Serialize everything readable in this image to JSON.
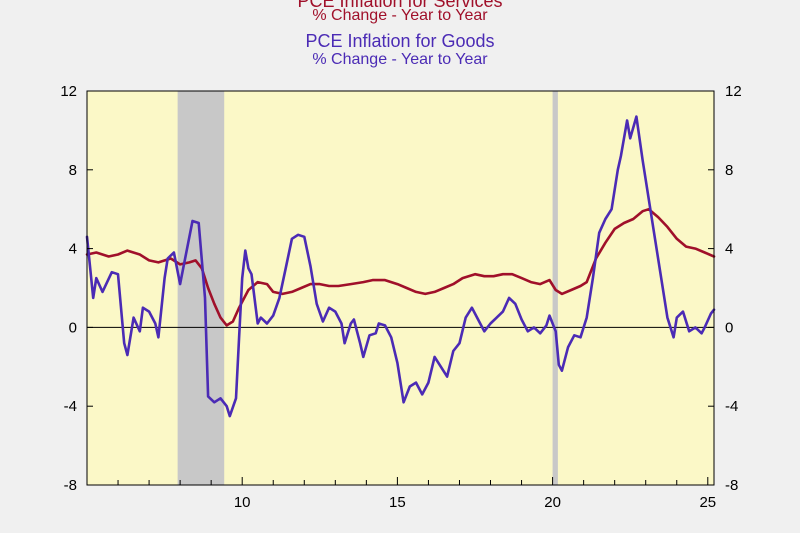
{
  "chart_data": {
    "type": "line",
    "title": "PCE Inflation for Services",
    "subtitle": "% Change - Year to Year",
    "title2": "PCE Inflation for Goods",
    "subtitle2": "% Change - Year to Year",
    "xlabel": "",
    "ylabel": "",
    "ylim": [
      -8,
      12
    ],
    "xlim": [
      2005,
      2025.2
    ],
    "yticks": [
      -8,
      -4,
      0,
      4,
      8,
      12
    ],
    "ytick_labels": [
      "-8",
      "-4",
      "0",
      "4",
      "8",
      "12"
    ],
    "xtick_labels": [
      {
        "x": 2010,
        "label": "10"
      },
      {
        "x": 2015,
        "label": "15"
      },
      {
        "x": 2020,
        "label": "20"
      },
      {
        "x": 2025,
        "label": "25"
      }
    ],
    "recessions": [
      [
        2007.92,
        2009.42
      ],
      [
        2020.0,
        2020.17
      ]
    ],
    "colors": {
      "services": "#a0102a",
      "goods": "#4b2bb5",
      "recession": "#c8c8c8",
      "plot_bg": "#fbf8c7",
      "page_bg": "#f0f0f0"
    },
    "series": [
      {
        "name": "PCE Inflation for Services",
        "color": "#a0102a",
        "points": [
          [
            2005.0,
            3.7
          ],
          [
            2005.3,
            3.8
          ],
          [
            2005.7,
            3.6
          ],
          [
            2006.0,
            3.7
          ],
          [
            2006.3,
            3.9
          ],
          [
            2006.7,
            3.7
          ],
          [
            2007.0,
            3.4
          ],
          [
            2007.3,
            3.3
          ],
          [
            2007.7,
            3.5
          ],
          [
            2008.0,
            3.2
          ],
          [
            2008.3,
            3.3
          ],
          [
            2008.5,
            3.4
          ],
          [
            2008.7,
            3.0
          ],
          [
            2008.9,
            2.0
          ],
          [
            2009.1,
            1.2
          ],
          [
            2009.3,
            0.5
          ],
          [
            2009.5,
            0.1
          ],
          [
            2009.7,
            0.3
          ],
          [
            2009.9,
            1.0
          ],
          [
            2010.2,
            1.9
          ],
          [
            2010.5,
            2.3
          ],
          [
            2010.8,
            2.2
          ],
          [
            2011.0,
            1.8
          ],
          [
            2011.3,
            1.7
          ],
          [
            2011.6,
            1.8
          ],
          [
            2011.9,
            2.0
          ],
          [
            2012.2,
            2.2
          ],
          [
            2012.5,
            2.2
          ],
          [
            2012.8,
            2.1
          ],
          [
            2013.1,
            2.1
          ],
          [
            2013.5,
            2.2
          ],
          [
            2013.9,
            2.3
          ],
          [
            2014.2,
            2.4
          ],
          [
            2014.6,
            2.4
          ],
          [
            2015.0,
            2.2
          ],
          [
            2015.3,
            2.0
          ],
          [
            2015.6,
            1.8
          ],
          [
            2015.9,
            1.7
          ],
          [
            2016.2,
            1.8
          ],
          [
            2016.5,
            2.0
          ],
          [
            2016.8,
            2.2
          ],
          [
            2017.1,
            2.5
          ],
          [
            2017.5,
            2.7
          ],
          [
            2017.8,
            2.6
          ],
          [
            2018.1,
            2.6
          ],
          [
            2018.4,
            2.7
          ],
          [
            2018.7,
            2.7
          ],
          [
            2019.0,
            2.5
          ],
          [
            2019.3,
            2.3
          ],
          [
            2019.6,
            2.2
          ],
          [
            2019.9,
            2.4
          ],
          [
            2020.1,
            1.9
          ],
          [
            2020.3,
            1.7
          ],
          [
            2020.6,
            1.9
          ],
          [
            2020.9,
            2.1
          ],
          [
            2021.1,
            2.3
          ],
          [
            2021.4,
            3.5
          ],
          [
            2021.7,
            4.3
          ],
          [
            2022.0,
            5.0
          ],
          [
            2022.3,
            5.3
          ],
          [
            2022.6,
            5.5
          ],
          [
            2022.9,
            5.9
          ],
          [
            2023.1,
            6.0
          ],
          [
            2023.4,
            5.6
          ],
          [
            2023.7,
            5.1
          ],
          [
            2024.0,
            4.5
          ],
          [
            2024.3,
            4.1
          ],
          [
            2024.6,
            4.0
          ],
          [
            2024.9,
            3.8
          ],
          [
            2025.2,
            3.6
          ]
        ]
      },
      {
        "name": "PCE Inflation for Goods",
        "color": "#4b2bb5",
        "points": [
          [
            2005.0,
            4.6
          ],
          [
            2005.2,
            1.5
          ],
          [
            2005.3,
            2.5
          ],
          [
            2005.5,
            1.8
          ],
          [
            2005.8,
            2.8
          ],
          [
            2006.0,
            2.7
          ],
          [
            2006.2,
            -0.8
          ],
          [
            2006.3,
            -1.4
          ],
          [
            2006.5,
            0.5
          ],
          [
            2006.7,
            -0.2
          ],
          [
            2006.8,
            1.0
          ],
          [
            2007.0,
            0.8
          ],
          [
            2007.2,
            0.2
          ],
          [
            2007.3,
            -0.5
          ],
          [
            2007.5,
            2.5
          ],
          [
            2007.6,
            3.5
          ],
          [
            2007.8,
            3.8
          ],
          [
            2008.0,
            2.2
          ],
          [
            2008.2,
            3.8
          ],
          [
            2008.4,
            5.4
          ],
          [
            2008.6,
            5.3
          ],
          [
            2008.8,
            1.5
          ],
          [
            2008.9,
            -3.5
          ],
          [
            2009.1,
            -3.8
          ],
          [
            2009.3,
            -3.6
          ],
          [
            2009.5,
            -4.0
          ],
          [
            2009.6,
            -4.5
          ],
          [
            2009.8,
            -3.6
          ],
          [
            2009.9,
            -0.5
          ],
          [
            2010.0,
            2.5
          ],
          [
            2010.1,
            3.9
          ],
          [
            2010.2,
            3.0
          ],
          [
            2010.3,
            2.7
          ],
          [
            2010.5,
            0.2
          ],
          [
            2010.6,
            0.5
          ],
          [
            2010.8,
            0.2
          ],
          [
            2011.0,
            0.6
          ],
          [
            2011.2,
            1.5
          ],
          [
            2011.4,
            3.0
          ],
          [
            2011.6,
            4.5
          ],
          [
            2011.8,
            4.7
          ],
          [
            2012.0,
            4.6
          ],
          [
            2012.2,
            3.1
          ],
          [
            2012.4,
            1.2
          ],
          [
            2012.6,
            0.3
          ],
          [
            2012.8,
            1.0
          ],
          [
            2013.0,
            0.8
          ],
          [
            2013.2,
            0.2
          ],
          [
            2013.3,
            -0.8
          ],
          [
            2013.5,
            0.2
          ],
          [
            2013.6,
            0.4
          ],
          [
            2013.8,
            -0.8
          ],
          [
            2013.9,
            -1.5
          ],
          [
            2014.1,
            -0.4
          ],
          [
            2014.3,
            -0.3
          ],
          [
            2014.4,
            0.2
          ],
          [
            2014.6,
            0.1
          ],
          [
            2014.8,
            -0.5
          ],
          [
            2015.0,
            -1.8
          ],
          [
            2015.2,
            -3.8
          ],
          [
            2015.4,
            -3.0
          ],
          [
            2015.6,
            -2.8
          ],
          [
            2015.8,
            -3.4
          ],
          [
            2016.0,
            -2.8
          ],
          [
            2016.2,
            -1.5
          ],
          [
            2016.4,
            -2.0
          ],
          [
            2016.6,
            -2.5
          ],
          [
            2016.8,
            -1.2
          ],
          [
            2017.0,
            -0.8
          ],
          [
            2017.2,
            0.5
          ],
          [
            2017.4,
            1.0
          ],
          [
            2017.6,
            0.4
          ],
          [
            2017.8,
            -0.2
          ],
          [
            2018.0,
            0.2
          ],
          [
            2018.2,
            0.5
          ],
          [
            2018.4,
            0.8
          ],
          [
            2018.6,
            1.5
          ],
          [
            2018.8,
            1.2
          ],
          [
            2019.0,
            0.4
          ],
          [
            2019.2,
            -0.2
          ],
          [
            2019.4,
            0.0
          ],
          [
            2019.6,
            -0.3
          ],
          [
            2019.8,
            0.1
          ],
          [
            2019.9,
            0.6
          ],
          [
            2020.1,
            -0.2
          ],
          [
            2020.2,
            -1.9
          ],
          [
            2020.3,
            -2.2
          ],
          [
            2020.5,
            -1.0
          ],
          [
            2020.7,
            -0.4
          ],
          [
            2020.9,
            -0.5
          ],
          [
            2021.1,
            0.5
          ],
          [
            2021.3,
            2.5
          ],
          [
            2021.5,
            4.8
          ],
          [
            2021.7,
            5.5
          ],
          [
            2021.9,
            6.0
          ],
          [
            2022.1,
            8.0
          ],
          [
            2022.2,
            8.7
          ],
          [
            2022.4,
            10.5
          ],
          [
            2022.5,
            9.6
          ],
          [
            2022.7,
            10.7
          ],
          [
            2022.9,
            8.5
          ],
          [
            2023.1,
            6.5
          ],
          [
            2023.3,
            4.5
          ],
          [
            2023.5,
            2.5
          ],
          [
            2023.7,
            0.5
          ],
          [
            2023.9,
            -0.5
          ],
          [
            2024.0,
            0.5
          ],
          [
            2024.2,
            0.8
          ],
          [
            2024.4,
            -0.2
          ],
          [
            2024.6,
            0.0
          ],
          [
            2024.8,
            -0.3
          ],
          [
            2024.9,
            0.0
          ],
          [
            2025.1,
            0.7
          ],
          [
            2025.2,
            0.9
          ]
        ]
      }
    ]
  }
}
